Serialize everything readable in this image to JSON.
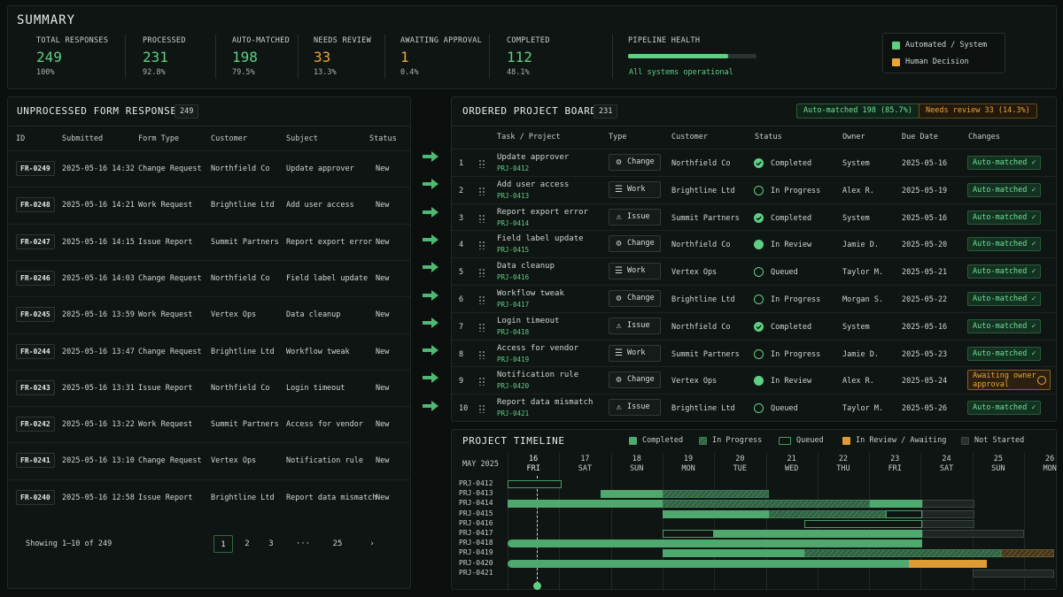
{
  "summary": {
    "title": "SUMMARY",
    "stats": [
      {
        "label": "TOTAL RESPONSES",
        "value": "249",
        "pct": "100%"
      },
      {
        "label": "PROCESSED",
        "value": "231",
        "pct": "92.8%"
      },
      {
        "label": "AUTO-MATCHED",
        "value": "198",
        "pct": "79.5%"
      },
      {
        "label": "NEEDS REVIEW",
        "value": "33",
        "pct": "13.3%"
      },
      {
        "label": "AWAITING APPROVAL",
        "value": "1",
        "pct": "0.4%"
      },
      {
        "label": "COMPLETED",
        "value": "112",
        "pct": "48.1%"
      }
    ],
    "health_label": "PIPELINE HEALTH",
    "health_status": "All systems operational",
    "health_level": 0.78,
    "legend": [
      {
        "label": "Automated / System",
        "color": "#5fcf83"
      },
      {
        "label": "Human Decision",
        "color": "#e9a53a"
      }
    ]
  },
  "unprocessed": {
    "title": "UNPROCESSED FORM RESPONSES",
    "count": "249",
    "columns": [
      "ID",
      "Submitted",
      "Form Type",
      "Customer",
      "Subject",
      "Status"
    ],
    "rows": [
      [
        "FR-0249",
        "2025-05-16 14:32",
        "Change Request",
        "Northfield Co",
        "Update approver",
        "New"
      ],
      [
        "FR-0248",
        "2025-05-16 14:21",
        "Work Request",
        "Brightline Ltd",
        "Add user access",
        "New"
      ],
      [
        "FR-0247",
        "2025-05-16 14:15",
        "Issue Report",
        "Summit Partners",
        "Report export error",
        "New"
      ],
      [
        "FR-0246",
        "2025-05-16 14:03",
        "Change Request",
        "Northfield Co",
        "Field label update",
        "New"
      ],
      [
        "FR-0245",
        "2025-05-16 13:59",
        "Work Request",
        "Vertex Ops",
        "Data cleanup",
        "New"
      ],
      [
        "FR-0244",
        "2025-05-16 13:47",
        "Change Request",
        "Brightline Ltd",
        "Workflow tweak",
        "New"
      ],
      [
        "FR-0243",
        "2025-05-16 13:31",
        "Issue Report",
        "Northfield Co",
        "Login timeout",
        "New"
      ],
      [
        "FR-0242",
        "2025-05-16 13:22",
        "Work Request",
        "Summit Partners",
        "Access for vendor",
        "New"
      ],
      [
        "FR-0241",
        "2025-05-16 13:10",
        "Change Request",
        "Vertex Ops",
        "Notification rule",
        "New"
      ],
      [
        "FR-0240",
        "2025-05-16 12:58",
        "Issue Report",
        "Brightline Ltd",
        "Report data mismatch",
        "New"
      ]
    ],
    "showing": "Showing 1–10 of 249",
    "pages": [
      "1",
      "2",
      "3",
      "···",
      "25",
      "›"
    ]
  },
  "board": {
    "title": "ORDERED PROJECT BOARD",
    "count": "231",
    "auto_badge": "Auto-matched 198 (85.7%)",
    "review_badge": "Needs review  33 (14.3%)",
    "columns": [
      "Task / Project",
      "Type",
      "Customer",
      "Status",
      "Owner",
      "Due Date",
      "Changes"
    ],
    "rows": [
      {
        "n": "1",
        "task": "Update approver",
        "proj": "PRJ-0412",
        "type": "Change",
        "icon": "gear-icon",
        "customer": "Northfield Co",
        "status": "Completed",
        "st": "done",
        "owner": "System",
        "due": "2025-05-16",
        "change": "Auto-matched ✓",
        "ck": "auto"
      },
      {
        "n": "2",
        "task": "Add user access",
        "proj": "PRJ-0413",
        "type": "Work",
        "icon": "list-icon",
        "customer": "Brightline Ltd",
        "status": "In Progress",
        "st": "ring",
        "owner": "Alex R.",
        "due": "2025-05-19",
        "change": "Auto-matched ✓",
        "ck": "auto"
      },
      {
        "n": "3",
        "task": "Report export error",
        "proj": "PRJ-0414",
        "type": "Issue",
        "icon": "warning-icon",
        "customer": "Summit Partners",
        "status": "Completed",
        "st": "done",
        "owner": "System",
        "due": "2025-05-16",
        "change": "Auto-matched ✓",
        "ck": "auto"
      },
      {
        "n": "4",
        "task": "Field label update",
        "proj": "PRJ-0415",
        "type": "Change",
        "icon": "gear-icon",
        "customer": "Northfield Co",
        "status": "In Review",
        "st": "fill",
        "owner": "Jamie D.",
        "due": "2025-05-20",
        "change": "Auto-matched ✓",
        "ck": "auto"
      },
      {
        "n": "5",
        "task": "Data cleanup",
        "proj": "PRJ-0416",
        "type": "Work",
        "icon": "list-icon",
        "customer": "Vertex Ops",
        "status": "Queued",
        "st": "ring",
        "owner": "Taylor M.",
        "due": "2025-05-21",
        "change": "Auto-matched ✓",
        "ck": "auto"
      },
      {
        "n": "6",
        "task": "Workflow tweak",
        "proj": "PRJ-0417",
        "type": "Change",
        "icon": "gear-icon",
        "customer": "Brightline Ltd",
        "status": "In Progress",
        "st": "ring",
        "owner": "Morgan S.",
        "due": "2025-05-22",
        "change": "Auto-matched ✓",
        "ck": "auto"
      },
      {
        "n": "7",
        "task": "Login timeout",
        "proj": "PRJ-0418",
        "type": "Issue",
        "icon": "warning-icon",
        "customer": "Northfield Co",
        "status": "Completed",
        "st": "done",
        "owner": "System",
        "due": "2025-05-16",
        "change": "Auto-matched ✓",
        "ck": "auto"
      },
      {
        "n": "8",
        "task": "Access for vendor",
        "proj": "PRJ-0419",
        "type": "Work",
        "icon": "list-icon",
        "customer": "Summit Partners",
        "status": "In Progress",
        "st": "ring",
        "owner": "Jamie D.",
        "due": "2025-05-23",
        "change": "Auto-matched ✓",
        "ck": "auto"
      },
      {
        "n": "9",
        "task": "Notification rule",
        "proj": "PRJ-0420",
        "type": "Change",
        "icon": "gear-icon",
        "customer": "Vertex Ops",
        "status": "In Review",
        "st": "fill",
        "owner": "Alex R.",
        "due": "2025-05-24",
        "change": "Awaiting owner approval",
        "ck": "await"
      },
      {
        "n": "10",
        "task": "Report data mismatch",
        "proj": "PRJ-0421",
        "type": "Issue",
        "icon": "warning-icon",
        "customer": "Brightline Ltd",
        "status": "Queued",
        "st": "ring",
        "owner": "Taylor M.",
        "due": "2025-05-26",
        "change": "Auto-matched ✓",
        "ck": "auto"
      }
    ]
  },
  "timeline": {
    "title": "PROJECT TIMELINE",
    "month": "MAY 2025",
    "legend": [
      "Completed",
      "In Progress",
      "Queued",
      "In Review / Awaiting",
      "Not Started"
    ],
    "days": [
      {
        "d": "16",
        "w": "FRI"
      },
      {
        "d": "17",
        "w": "SAT"
      },
      {
        "d": "18",
        "w": "SUN"
      },
      {
        "d": "19",
        "w": "MON"
      },
      {
        "d": "20",
        "w": "TUE"
      },
      {
        "d": "21",
        "w": "WED"
      },
      {
        "d": "22",
        "w": "THU"
      },
      {
        "d": "23",
        "w": "FRI"
      },
      {
        "d": "24",
        "w": "SAT"
      },
      {
        "d": "25",
        "w": "SUN"
      },
      {
        "d": "26",
        "w": "MON"
      }
    ],
    "projects": [
      "PRJ-0412",
      "PRJ-0413",
      "PRJ-0414",
      "PRJ-0415",
      "PRJ-0416",
      "PRJ-0417",
      "PRJ-0418",
      "PRJ-0419",
      "PRJ-0420",
      "PRJ-0421"
    ]
  }
}
